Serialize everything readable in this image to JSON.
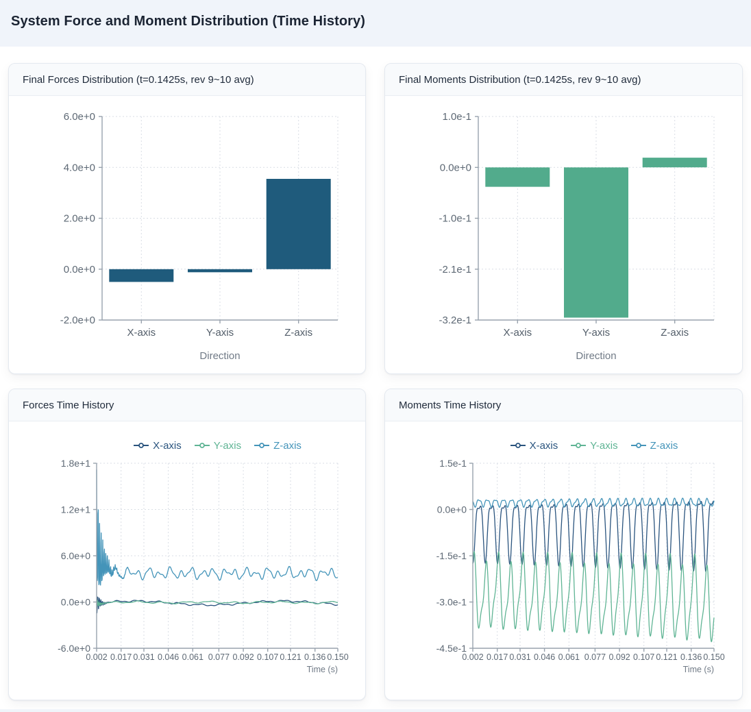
{
  "page": {
    "title": "System Force and Moment Distribution (Time History)"
  },
  "cards": {
    "forces_bar": {
      "title": "Final Forces Distribution (t=0.1425s, rev 9~10 avg)"
    },
    "moments_bar": {
      "title": "Final Moments Distribution (t=0.1425s, rev 9~10 avg)"
    },
    "forces_line": {
      "title": "Forces Time History"
    },
    "moments_line": {
      "title": "Moments Time History"
    }
  },
  "colors": {
    "force_bar": "#1f5b7c",
    "moment_bar": "#52ab8c",
    "series_x": "#2a547e",
    "series_y": "#5fb494",
    "series_z": "#4494b9",
    "grid": "#d9dee5",
    "axis": "#98a2ad",
    "tick_label": "#5d6874",
    "category_label": "#525d69",
    "axis_title": "#707a86"
  },
  "chart_data": [
    {
      "id": "forces_bar",
      "type": "bar",
      "title": "Final Forces Distribution (t=0.1425s, rev 9~10 avg)",
      "categories": [
        "X-axis",
        "Y-axis",
        "Z-axis"
      ],
      "values": [
        -0.5,
        -0.12,
        3.55
      ],
      "xlabel": "Direction",
      "ylim": [
        -2,
        6
      ],
      "yticks": [
        {
          "value": 6,
          "label": "6.0e+0"
        },
        {
          "value": 4,
          "label": "4.0e+0"
        },
        {
          "value": 2,
          "label": "2.0e+0"
        },
        {
          "value": 0,
          "label": "0.0e+0"
        },
        {
          "value": -2,
          "label": "-2.0e+0"
        }
      ],
      "color": "#1f5b7c",
      "grid": true
    },
    {
      "id": "moments_bar",
      "type": "bar",
      "title": "Final Moments Distribution (t=0.1425s, rev 9~10 avg)",
      "categories": [
        "X-axis",
        "Y-axis",
        "Z-axis"
      ],
      "values": [
        -0.04,
        -0.31,
        0.02
      ],
      "xlabel": "Direction",
      "ylim": [
        -0.315,
        0.105
      ],
      "yticks": [
        {
          "value": 0.105,
          "label": "1.0e-1"
        },
        {
          "value": 0,
          "label": "0.0e+0"
        },
        {
          "value": -0.105,
          "label": "-1.0e-1"
        },
        {
          "value": -0.21,
          "label": "-2.1e-1"
        },
        {
          "value": -0.315,
          "label": "-3.2e-1"
        }
      ],
      "color": "#52ab8c",
      "grid": true
    },
    {
      "id": "forces_line",
      "type": "line",
      "title": "Forces Time History",
      "xlabel": "Time (s)",
      "xlim": [
        0.002,
        0.15
      ],
      "ylim": [
        -6,
        18
      ],
      "sample_step": 0.0002,
      "xticks": [
        {
          "value": 0.002,
          "label": "0.002"
        },
        {
          "value": 0.017,
          "label": "0.017"
        },
        {
          "value": 0.031,
          "label": "0.031"
        },
        {
          "value": 0.046,
          "label": "0.046"
        },
        {
          "value": 0.061,
          "label": "0.061"
        },
        {
          "value": 0.077,
          "label": "0.077"
        },
        {
          "value": 0.092,
          "label": "0.092"
        },
        {
          "value": 0.107,
          "label": "0.107"
        },
        {
          "value": 0.121,
          "label": "0.121"
        },
        {
          "value": 0.136,
          "label": "0.136"
        },
        {
          "value": 0.15,
          "label": "0.150"
        }
      ],
      "yticks": [
        {
          "value": 18,
          "label": "1.8e+1"
        },
        {
          "value": 12,
          "label": "1.2e+1"
        },
        {
          "value": 6,
          "label": "6.0e+0"
        },
        {
          "value": 0,
          "label": "0.0e+0"
        },
        {
          "value": -6,
          "label": "-6.0e+0"
        }
      ],
      "series": [
        {
          "name": "X-axis",
          "color": "#2a547e",
          "synth": {
            "mean": -0.13,
            "waves": [
              {
                "amp": 0.26,
                "freq": 11,
                "phase": 6.1
              },
              {
                "amp": 0.09,
                "freq": 78,
                "phase": 0.8
              },
              {
                "amp": 0.05,
                "freq": 190,
                "phase": 3.4
              }
            ],
            "transient": {
              "amp_up": 1.15,
              "amp_dn": 1.5,
              "tau": 0.0022,
              "freq": 1050,
              "phase": 2.6
            }
          }
        },
        {
          "name": "Y-axis",
          "color": "#5fb494",
          "synth": {
            "mean": -0.05,
            "waves": [
              {
                "amp": 0.1,
                "freq": 68,
                "phase": 2.4
              },
              {
                "amp": 0.06,
                "freq": 23,
                "phase": 4.2
              },
              {
                "amp": 0.04,
                "freq": 150,
                "phase": 1.1
              }
            ],
            "transient": {
              "amp_up": 0.5,
              "amp_dn": 0.6,
              "tau": 0.002,
              "freq": 1050,
              "phase": 4.3
            }
          }
        },
        {
          "name": "Z-axis",
          "color": "#4494b9",
          "synth": {
            "mean": 3.7,
            "waves": [
              {
                "amp": 0.45,
                "freq": 151,
                "phase": 0.7
              },
              {
                "amp": 0.3,
                "freq": 83,
                "phase": 2.1
              },
              {
                "amp": 0.2,
                "freq": 271,
                "phase": 4.0
              }
            ],
            "transient": {
              "amp_up": 13.5,
              "amp_dn": 1.3,
              "tau": 0.0035,
              "freq": 1050,
              "phase": 1.2
            }
          }
        }
      ]
    },
    {
      "id": "moments_line",
      "type": "line",
      "title": "Moments Time History",
      "xlabel": "Time (s)",
      "xlim": [
        0.002,
        0.15
      ],
      "ylim": [
        -0.45,
        0.15
      ],
      "sample_step": 0.0002,
      "xticks": [
        {
          "value": 0.002,
          "label": "0.002"
        },
        {
          "value": 0.017,
          "label": "0.017"
        },
        {
          "value": 0.031,
          "label": "0.031"
        },
        {
          "value": 0.046,
          "label": "0.046"
        },
        {
          "value": 0.061,
          "label": "0.061"
        },
        {
          "value": 0.077,
          "label": "0.077"
        },
        {
          "value": 0.092,
          "label": "0.092"
        },
        {
          "value": 0.107,
          "label": "0.107"
        },
        {
          "value": 0.121,
          "label": "0.121"
        },
        {
          "value": 0.136,
          "label": "0.136"
        },
        {
          "value": 0.15,
          "label": "0.150"
        }
      ],
      "yticks": [
        {
          "value": 0.15,
          "label": "1.5e-1"
        },
        {
          "value": 0,
          "label": "0.0e+0"
        },
        {
          "value": -0.15,
          "label": "-1.5e-1"
        },
        {
          "value": -0.3,
          "label": "-3.0e-1"
        },
        {
          "value": -0.45,
          "label": "-4.5e-1"
        }
      ],
      "series": [
        {
          "name": "X-axis",
          "color": "#2a547e",
          "synth": {
            "mean": -0.055,
            "waves": [
              {
                "amp": 0.088,
                "freq": 133,
                "phase": 2.9,
                "grow": 0.25
              },
              {
                "amp": 0.03,
                "freq": 266,
                "phase": 1.2,
                "grow": 0.25
              }
            ]
          }
        },
        {
          "name": "Y-axis",
          "color": "#5fb494",
          "synth": {
            "mean": -0.275,
            "drift": -0.028,
            "waves": [
              {
                "amp": 0.1,
                "freq": 133,
                "phase": 5.8,
                "grow": 0.18
              },
              {
                "amp": 0.033,
                "freq": 266,
                "phase": 2.6
              },
              {
                "amp": 0.018,
                "freq": 66,
                "phase": 1.0
              }
            ]
          }
        },
        {
          "name": "Z-axis",
          "color": "#4494b9",
          "synth": {
            "mean": 0.022,
            "waves": [
              {
                "amp": 0.011,
                "freq": 200,
                "phase": 0.5
              },
              {
                "amp": 0.004,
                "freq": 405,
                "phase": 2.0
              }
            ]
          }
        }
      ]
    }
  ]
}
